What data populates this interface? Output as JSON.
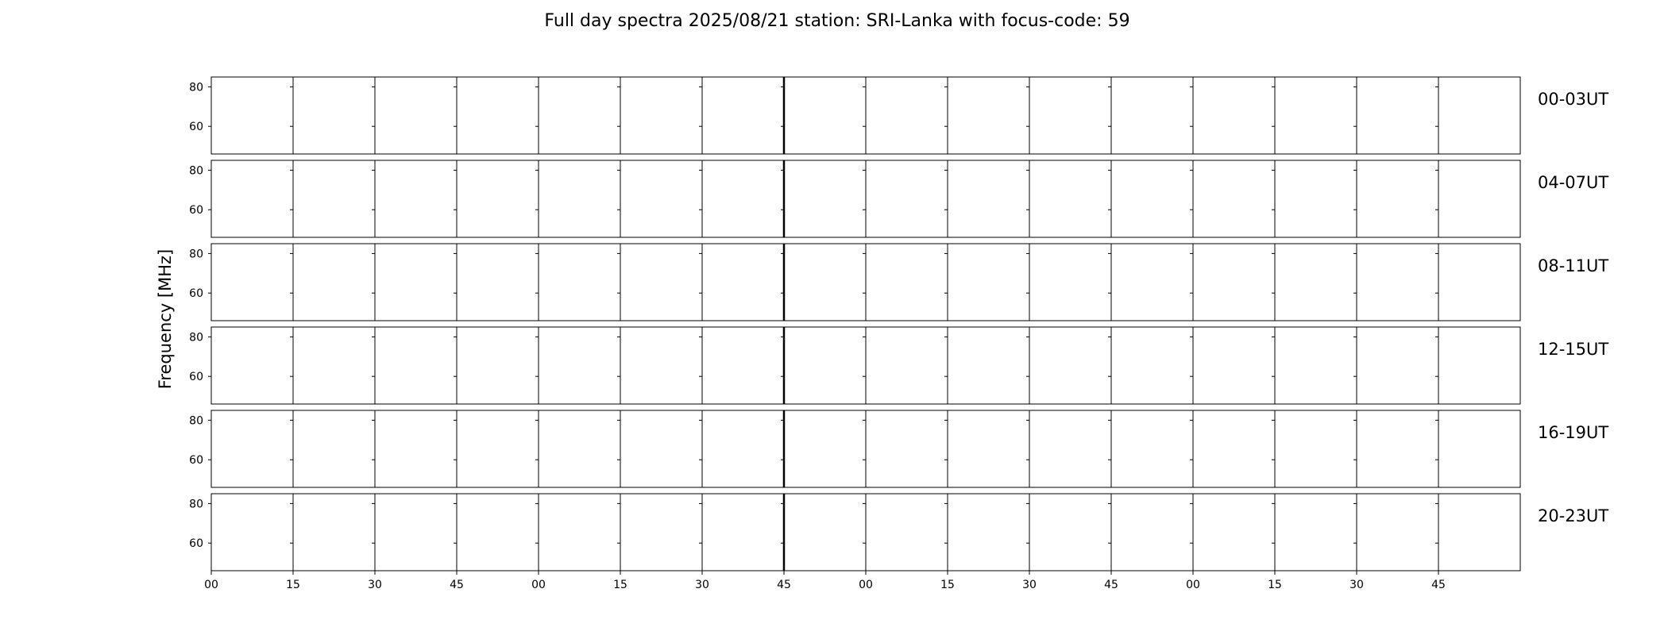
{
  "chart_data": {
    "type": "heatmap",
    "title": "Full day spectra 2025/08/21 station: SRI-Lanka with focus-code: 59",
    "ylabel": "Frequency [MHz]",
    "ylim": [
      46,
      85
    ],
    "yticks": [
      60,
      80
    ],
    "row_labels": [
      "00-03UT",
      "04-07UT",
      "08-11UT",
      "12-15UT",
      "16-19UT",
      "20-23UT"
    ],
    "x_ticks": [
      "00",
      "15",
      "30",
      "45",
      "00",
      "15",
      "30",
      "45",
      "00",
      "15",
      "30",
      "45",
      "00",
      "15",
      "30",
      "45"
    ],
    "panels_per_row": 16,
    "colormap": [
      "#440154",
      "#3b528b",
      "#21918c",
      "#5ec962",
      "#fde725"
    ],
    "data_panels": [
      [
        0,
        0,
        0,
        0,
        0,
        0,
        0,
        0,
        0,
        0,
        0,
        0,
        0,
        0,
        0,
        0
      ],
      [
        0,
        0,
        0,
        0,
        0,
        0,
        0,
        0,
        0,
        0,
        0,
        0,
        0,
        0,
        0,
        0
      ],
      [
        0,
        0,
        0,
        0,
        0,
        0,
        0,
        0,
        0,
        0,
        0,
        0,
        0,
        0,
        0,
        0
      ],
      [
        0,
        0,
        0,
        0,
        0,
        0,
        0,
        0,
        0,
        0,
        0,
        0,
        0,
        0,
        0,
        0
      ],
      [
        0,
        0,
        0,
        0,
        0,
        0,
        0,
        0,
        0,
        0,
        0,
        0,
        0,
        0,
        0,
        0
      ],
      [
        0,
        0,
        0,
        0,
        0,
        0,
        0,
        0,
        0,
        0,
        0,
        0,
        0,
        0,
        0,
        0
      ]
    ],
    "grid": false
  }
}
